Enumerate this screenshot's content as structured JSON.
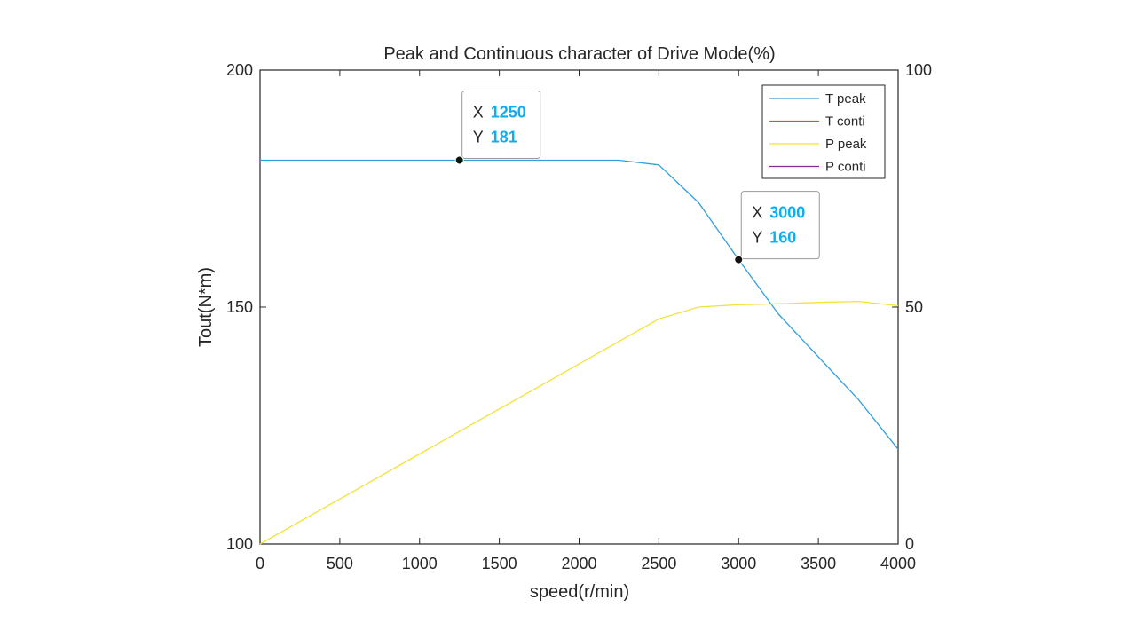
{
  "chart_data": {
    "type": "line",
    "title": "Peak and Continuous character of Drive Mode(%)",
    "xlabel": "speed(r/min)",
    "ylabel": "Tout(N*m)",
    "xlim": [
      0,
      4000
    ],
    "ylim": [
      100,
      200
    ],
    "y2lim": [
      0,
      100
    ],
    "xticks": [
      "0",
      "500",
      "1000",
      "1500",
      "2000",
      "2500",
      "3000",
      "3500",
      "4000"
    ],
    "yticks": [
      "100",
      "150",
      "200"
    ],
    "y2ticks": [
      "0",
      "50",
      "100"
    ],
    "grid": false,
    "legend_position": "top-right",
    "series": [
      {
        "name": "T peak",
        "axis": "left",
        "color": "#0072BD",
        "x": [
          0,
          500,
          1000,
          1250,
          1500,
          2000,
          2250,
          2500,
          2750,
          3000,
          3250,
          3500,
          3750,
          4000
        ],
        "y": [
          181,
          181,
          181,
          181,
          181,
          181,
          181,
          180,
          172,
          160,
          148.5,
          139.5,
          130.5,
          120
        ]
      },
      {
        "name": "T conti",
        "axis": "left",
        "color": "#D95319",
        "x": [],
        "y": []
      },
      {
        "name": "P peak",
        "axis": "right",
        "color": "#EDB120",
        "x": [
          0,
          500,
          1000,
          1500,
          2000,
          2500,
          2750,
          3000,
          3250,
          3500,
          3750,
          4000
        ],
        "y": [
          0,
          9.5,
          19,
          28.5,
          38,
          47.5,
          50,
          50.5,
          50.7,
          51,
          51.2,
          50.3
        ]
      },
      {
        "name": "P conti",
        "axis": "right",
        "color": "#7E2F8E",
        "x": [],
        "y": []
      }
    ],
    "datatips": [
      {
        "x": 1250,
        "y": 181,
        "x_label": "X",
        "y_label": "Y",
        "x_value": "1250",
        "y_value": "181",
        "anchor": "above"
      },
      {
        "x": 3000,
        "y": 160,
        "x_label": "X",
        "y_label": "Y",
        "x_value": "3000",
        "y_value": "160",
        "anchor": "right"
      }
    ],
    "colors": {
      "datatip_value": "#0DAEEF",
      "axis": "#262626",
      "tpeak_rendered": "#2F9FE0",
      "ppeak_rendered": "#F2E23A"
    }
  }
}
